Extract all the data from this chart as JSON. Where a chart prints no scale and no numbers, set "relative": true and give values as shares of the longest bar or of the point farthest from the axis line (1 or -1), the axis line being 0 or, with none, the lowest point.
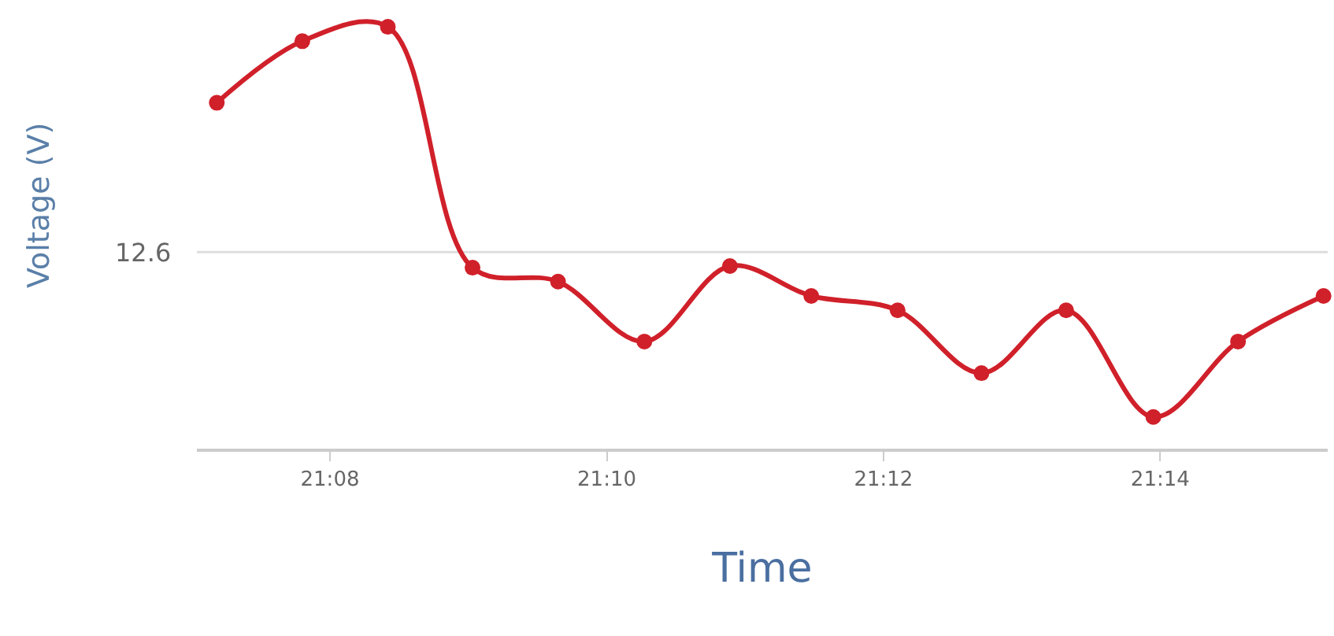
{
  "chart_data": {
    "type": "line",
    "xlabel": "Time",
    "ylabel": "Voltage (V)",
    "relative": true,
    "x": [
      21.1197,
      21.13,
      21.1403,
      21.1505,
      21.1608,
      21.1712,
      21.1815,
      21.1913,
      21.2017,
      21.2118,
      21.222,
      21.2325,
      21.2427,
      21.253
    ],
    "series": [
      {
        "color": "#d0202a",
        "values": [
          0.82,
          0.966,
          1,
          0.429,
          0.396,
          0.254,
          0.433,
          0.362,
          0.328,
          0.179,
          0.328,
          0.075,
          0.254,
          0.362
        ]
      }
    ],
    "xlim": [
      21.1173,
      21.2535
    ],
    "xticks": [
      {
        "value": 21.13333,
        "label": "21:08"
      },
      {
        "value": 21.16667,
        "label": "21:10"
      },
      {
        "value": 21.2,
        "label": "21:12"
      },
      {
        "value": 21.23333,
        "label": "21:14"
      }
    ],
    "ref_lines": [
      {
        "axis": "y",
        "value": 0.466,
        "color": "#dddddd"
      }
    ],
    "annotations": [
      "12.6"
    ],
    "marker": "circle",
    "line_style": "solid"
  }
}
